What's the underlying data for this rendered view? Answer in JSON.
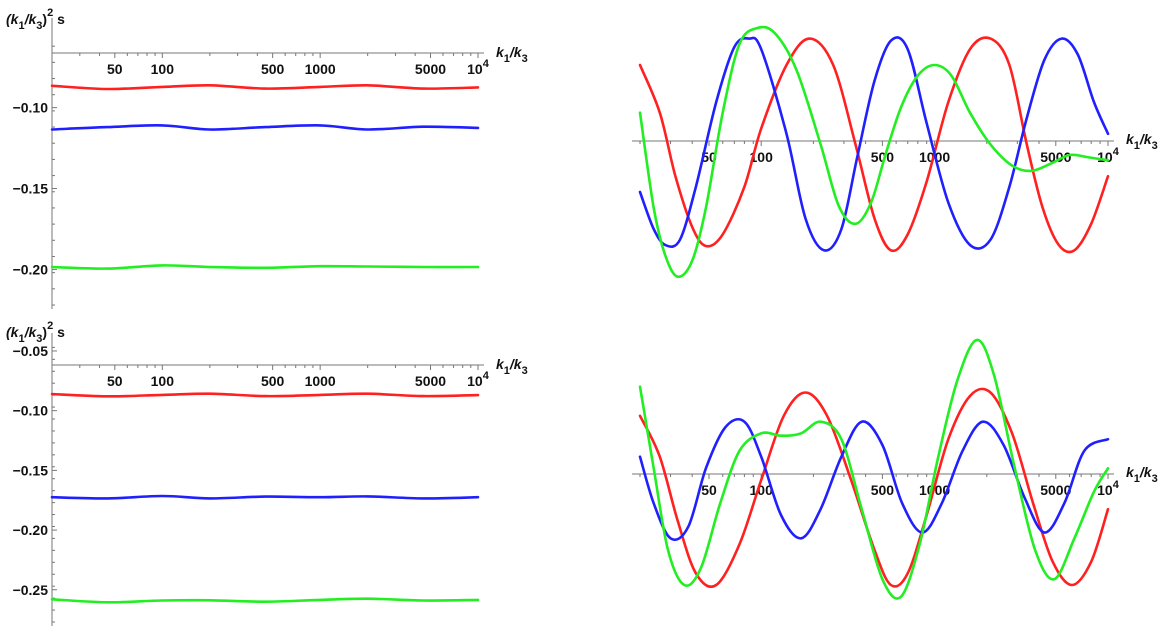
{
  "colors": {
    "red": "#ff2020",
    "blue": "#2020ff",
    "green": "#22ee22",
    "axis": "#777777"
  },
  "x_axis_label": {
    "main": "k",
    "sub1": "1",
    "slash": "/k",
    "sub3": "3"
  },
  "y_axis_label": {
    "open": "(k",
    "sub1": "1",
    "slash": "/k",
    "sub3": "3",
    "close": ")",
    "sup": "2",
    "tail": " s"
  },
  "chart_data": [
    {
      "type": "line",
      "panel": "top-left",
      "xscale": "log",
      "xlim": [
        20,
        10000
      ],
      "ylim": [
        -0.222,
        -0.052
      ],
      "xticks": [
        {
          "value": 50,
          "label": "50"
        },
        {
          "value": 100,
          "label": "100"
        },
        {
          "value": 500,
          "label": "500"
        },
        {
          "value": 1000,
          "label": "1000"
        },
        {
          "value": 5000,
          "label": "5000"
        },
        {
          "value": 10000,
          "label": "10",
          "sup": "4"
        }
      ],
      "yticks": [
        {
          "value": -0.1,
          "label": "-0.10"
        },
        {
          "value": -0.15,
          "label": "-0.15"
        },
        {
          "value": -0.2,
          "label": "-0.20"
        }
      ],
      "y_axis_label_shown": true,
      "series": [
        {
          "color": "red",
          "x": [
            20,
            45,
            100,
            200,
            450,
            1000,
            2000,
            4500,
            10000
          ],
          "y": [
            -0.0865,
            -0.0885,
            -0.0872,
            -0.0862,
            -0.0882,
            -0.0872,
            -0.0862,
            -0.0882,
            -0.0875
          ]
        },
        {
          "color": "blue",
          "x": [
            20,
            45,
            100,
            200,
            450,
            1000,
            2000,
            4500,
            10000
          ],
          "y": [
            -0.1135,
            -0.112,
            -0.111,
            -0.1135,
            -0.112,
            -0.111,
            -0.1135,
            -0.1118,
            -0.1125
          ]
        },
        {
          "color": "green",
          "x": [
            20,
            45,
            100,
            200,
            450,
            1000,
            2000,
            4500,
            10000
          ],
          "y": [
            -0.1985,
            -0.1995,
            -0.1975,
            -0.1985,
            -0.199,
            -0.198,
            -0.1982,
            -0.1985,
            -0.1985
          ]
        }
      ]
    },
    {
      "type": "line",
      "panel": "top-right",
      "xscale": "log",
      "xlim": [
        20,
        10000
      ],
      "ylim": [
        -1.3,
        1.1
      ],
      "xticks": [
        {
          "value": 50,
          "label": "50"
        },
        {
          "value": 100,
          "label": "100"
        },
        {
          "value": 500,
          "label": "500"
        },
        {
          "value": 1000,
          "label": "1000"
        },
        {
          "value": 5000,
          "label": "5000"
        },
        {
          "value": 10000,
          "label": "10",
          "sup": "4"
        }
      ],
      "yticks": [],
      "y_axis_label_shown": false,
      "series": [
        {
          "color": "red",
          "x": [
            20,
            26,
            32,
            40,
            48,
            60,
            80,
            100,
            140,
            190,
            260,
            350,
            450,
            560,
            700,
            900,
            1200,
            1600,
            2100,
            2700,
            3400,
            4200,
            5200,
            6400,
            8000,
            10000
          ],
          "y": [
            0.75,
            0.3,
            -0.3,
            -0.78,
            -0.96,
            -0.85,
            -0.4,
            0.15,
            0.75,
            1.0,
            0.75,
            0.0,
            -0.7,
            -1.0,
            -0.85,
            -0.35,
            0.4,
            0.9,
            1.0,
            0.75,
            0.0,
            -0.6,
            -0.95,
            -1.0,
            -0.75,
            -0.3
          ]
        },
        {
          "color": "blue",
          "x": [
            20,
            24,
            28,
            34,
            42,
            55,
            70,
            85,
            100,
            140,
            180,
            230,
            290,
            360,
            450,
            560,
            700,
            900,
            1200,
            1600,
            2100,
            2700,
            3400,
            4300,
            5400,
            6700,
            8300,
            10000
          ],
          "y": [
            -0.45,
            -0.8,
            -0.95,
            -0.9,
            -0.4,
            0.4,
            0.92,
            1.0,
            0.9,
            0.1,
            -0.7,
            -1.0,
            -0.8,
            -0.1,
            0.6,
            0.98,
            0.9,
            0.2,
            -0.55,
            -0.95,
            -0.9,
            -0.4,
            0.25,
            0.8,
            1.0,
            0.85,
            0.4,
            0.1
          ]
        },
        {
          "color": "green",
          "x": [
            20,
            24,
            28,
            33,
            40,
            48,
            60,
            75,
            95,
            120,
            160,
            220,
            280,
            350,
            430,
            520,
            640,
            800,
            1000,
            1250,
            1600,
            2100,
            2800,
            3600,
            4700,
            6000,
            7600,
            10000
          ],
          "y": [
            0.3,
            -0.6,
            -1.05,
            -1.25,
            -1.1,
            -0.6,
            0.3,
            0.95,
            1.1,
            1.05,
            0.7,
            0.0,
            -0.58,
            -0.75,
            -0.55,
            -0.1,
            0.35,
            0.65,
            0.75,
            0.65,
            0.3,
            0.0,
            -0.2,
            -0.25,
            -0.18,
            -0.1,
            -0.12,
            -0.15
          ]
        }
      ]
    },
    {
      "type": "line",
      "panel": "bottom-left",
      "xscale": "log",
      "xlim": [
        20,
        10000
      ],
      "ylim": [
        -0.277,
        -0.045
      ],
      "xticks": [
        {
          "value": 50,
          "label": "50"
        },
        {
          "value": 100,
          "label": "100"
        },
        {
          "value": 500,
          "label": "500"
        },
        {
          "value": 1000,
          "label": "1000"
        },
        {
          "value": 5000,
          "label": "5000"
        },
        {
          "value": 10000,
          "label": "10",
          "sup": "4"
        }
      ],
      "yticks": [
        {
          "value": -0.05,
          "label": "-0.05"
        },
        {
          "value": -0.1,
          "label": "-0.10"
        },
        {
          "value": -0.15,
          "label": "-0.15"
        },
        {
          "value": -0.2,
          "label": "-0.20"
        },
        {
          "value": -0.25,
          "label": "-0.25"
        }
      ],
      "y_axis_label_shown": true,
      "series": [
        {
          "color": "red",
          "x": [
            20,
            45,
            100,
            200,
            450,
            1000,
            2000,
            4500,
            10000
          ],
          "y": [
            -0.086,
            -0.088,
            -0.0868,
            -0.0858,
            -0.0878,
            -0.0868,
            -0.0858,
            -0.0878,
            -0.087
          ]
        },
        {
          "color": "blue",
          "x": [
            20,
            45,
            100,
            200,
            450,
            1000,
            2000,
            4500,
            10000
          ],
          "y": [
            -0.1725,
            -0.1735,
            -0.1715,
            -0.1735,
            -0.172,
            -0.1725,
            -0.1718,
            -0.1735,
            -0.1725
          ]
        },
        {
          "color": "green",
          "x": [
            20,
            45,
            100,
            200,
            450,
            1000,
            2000,
            4500,
            10000
          ],
          "y": [
            -0.258,
            -0.2605,
            -0.259,
            -0.2588,
            -0.26,
            -0.2585,
            -0.2575,
            -0.259,
            -0.2585
          ]
        }
      ]
    },
    {
      "type": "line",
      "panel": "bottom-right",
      "xscale": "log",
      "xlim": [
        20,
        10000
      ],
      "ylim": [
        -1.2,
        1.2
      ],
      "xticks": [
        {
          "value": 50,
          "label": "50"
        },
        {
          "value": 100,
          "label": "100"
        },
        {
          "value": 500,
          "label": "500"
        },
        {
          "value": 1000,
          "label": "1000"
        },
        {
          "value": 5000,
          "label": "5000"
        },
        {
          "value": 10000,
          "label": "10",
          "sup": "4"
        }
      ],
      "yticks": [],
      "y_axis_label_shown": false,
      "series": [
        {
          "color": "red",
          "x": [
            20,
            26,
            33,
            42,
            55,
            75,
            100,
            135,
            180,
            240,
            330,
            450,
            560,
            700,
            900,
            1200,
            1600,
            2100,
            2800,
            3700,
            4800,
            6200,
            8000,
            10000
          ],
          "y": [
            0.55,
            0.2,
            -0.35,
            -0.8,
            -0.9,
            -0.55,
            0.0,
            0.55,
            0.75,
            0.55,
            0.0,
            -0.6,
            -0.9,
            -0.8,
            -0.3,
            0.35,
            0.72,
            0.75,
            0.4,
            -0.2,
            -0.7,
            -0.9,
            -0.7,
            -0.25
          ]
        },
        {
          "color": "blue",
          "x": [
            20,
            24,
            30,
            38,
            48,
            62,
            80,
            100,
            130,
            170,
            220,
            290,
            380,
            500,
            650,
            850,
            1100,
            1450,
            1900,
            2500,
            3300,
            4300,
            5600,
            7300,
            10000
          ],
          "y": [
            0.2,
            -0.2,
            -0.5,
            -0.4,
            0.1,
            0.45,
            0.5,
            0.2,
            -0.3,
            -0.5,
            -0.25,
            0.2,
            0.5,
            0.3,
            -0.2,
            -0.45,
            -0.2,
            0.25,
            0.5,
            0.3,
            -0.15,
            -0.45,
            -0.2,
            0.25,
            0.35
          ]
        },
        {
          "color": "green",
          "x": [
            20,
            24,
            29,
            36,
            45,
            58,
            75,
            100,
            130,
            170,
            220,
            290,
            380,
            500,
            640,
            820,
            1050,
            1350,
            1750,
            2200,
            2900,
            3800,
            4900,
            6400,
            8300,
            10000
          ],
          "y": [
            0.8,
            0.1,
            -0.6,
            -0.9,
            -0.75,
            -0.2,
            0.25,
            0.4,
            0.38,
            0.4,
            0.5,
            0.35,
            -0.25,
            -0.85,
            -1.0,
            -0.55,
            0.2,
            0.85,
            1.2,
            0.9,
            0.1,
            -0.6,
            -0.85,
            -0.5,
            -0.1,
            0.1
          ]
        }
      ]
    }
  ]
}
